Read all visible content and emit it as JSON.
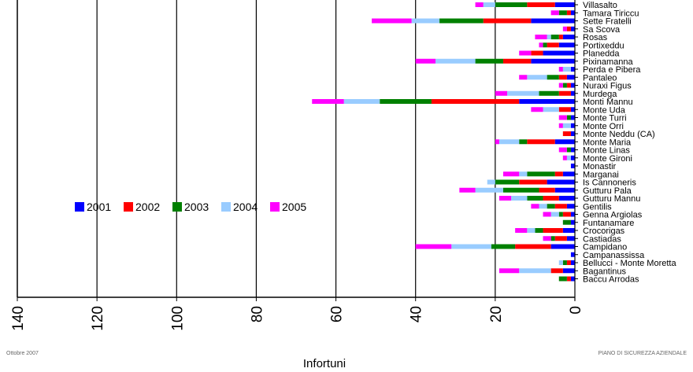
{
  "chart_data": {
    "type": "bar",
    "orientation": "horizontal-stacked",
    "x_direction": "reversed",
    "xlabel": "Infortuni",
    "xlim": [
      0,
      140
    ],
    "xticks": [
      "140",
      "120",
      "100",
      "80",
      "60",
      "40",
      "20",
      "0"
    ],
    "grid": true,
    "legend_position": "left-middle",
    "series": [
      {
        "name": "2001",
        "color": "#0000ff"
      },
      {
        "name": "2002",
        "color": "#ff0000"
      },
      {
        "name": "2003",
        "color": "#008000"
      },
      {
        "name": "2004",
        "color": "#99ccff"
      },
      {
        "name": "2005",
        "color": "#ff00ff"
      }
    ],
    "rows": [
      {
        "label": "Villasalto",
        "values": [
          5,
          7,
          8,
          3,
          2
        ]
      },
      {
        "label": "Tamara Tiriccu",
        "values": [
          1,
          1,
          2,
          0,
          2
        ]
      },
      {
        "label": "Sette Fratelli",
        "values": [
          11,
          12,
          11,
          7,
          10
        ]
      },
      {
        "label": "Sa Scova",
        "values": [
          1,
          1,
          0,
          0,
          1
        ]
      },
      {
        "label": "Rosas",
        "values": [
          3,
          1,
          2,
          1,
          3
        ]
      },
      {
        "label": "Portixeddu",
        "values": [
          4,
          3,
          1,
          0,
          1
        ]
      },
      {
        "label": "Planedda",
        "values": [
          8,
          3,
          0,
          0,
          3
        ]
      },
      {
        "label": "Pixinamanna",
        "values": [
          11,
          7,
          7,
          10,
          5
        ]
      },
      {
        "label": "Perda e Pibera",
        "values": [
          1,
          0,
          0,
          2,
          1
        ]
      },
      {
        "label": "Pantaleo",
        "values": [
          2,
          2,
          3,
          5,
          2
        ]
      },
      {
        "label": "Nuraxi Figus",
        "values": [
          1,
          1,
          1,
          0,
          1
        ]
      },
      {
        "label": "Murdega",
        "values": [
          1,
          3,
          5,
          8,
          3
        ]
      },
      {
        "label": "Monti Mannu",
        "values": [
          14,
          22,
          13,
          9,
          8
        ]
      },
      {
        "label": "Monte Uda",
        "values": [
          1,
          3,
          0,
          4,
          3
        ]
      },
      {
        "label": "Monte Turri",
        "values": [
          1,
          0,
          1,
          0,
          2
        ]
      },
      {
        "label": "Monte Orri",
        "values": [
          1,
          0,
          0,
          2,
          1
        ]
      },
      {
        "label": "Monte Neddu (CA)",
        "values": [
          1,
          2,
          0,
          0,
          0
        ]
      },
      {
        "label": "Monte Maria",
        "values": [
          5,
          7,
          2,
          5,
          1
        ]
      },
      {
        "label": "Monte Linas",
        "values": [
          1,
          0,
          1,
          0,
          2
        ]
      },
      {
        "label": "Monte Gironi",
        "values": [
          1,
          0,
          0,
          1,
          1
        ]
      },
      {
        "label": "Monastir",
        "values": [
          1,
          0,
          0,
          0,
          0
        ]
      },
      {
        "label": "Marganai",
        "values": [
          3,
          2,
          7,
          2,
          4
        ]
      },
      {
        "label": "Is Cannoneris",
        "values": [
          7,
          7,
          6,
          2,
          0
        ]
      },
      {
        "label": "Gutturu Pala",
        "values": [
          5,
          4,
          9,
          7,
          4
        ]
      },
      {
        "label": "Gutturu Mannu",
        "values": [
          4,
          4,
          4,
          4,
          3
        ]
      },
      {
        "label": "Gentilis",
        "values": [
          2,
          3,
          2,
          2,
          2
        ]
      },
      {
        "label": "Genna Argiolas",
        "values": [
          1,
          2,
          1,
          2,
          2
        ]
      },
      {
        "label": "Funtanamare",
        "values": [
          1,
          0,
          2,
          0,
          0
        ]
      },
      {
        "label": "Crocorigas",
        "values": [
          3,
          5,
          2,
          2,
          3
        ]
      },
      {
        "label": "Castiadas",
        "values": [
          2,
          3,
          1,
          0,
          2
        ]
      },
      {
        "label": "Campidano",
        "values": [
          6,
          9,
          6,
          10,
          9
        ]
      },
      {
        "label": "Campanassissa",
        "values": [
          1,
          0,
          0,
          0,
          0
        ]
      },
      {
        "label": "Bellucci - Monte Moretta",
        "values": [
          1,
          1,
          1,
          1,
          0
        ]
      },
      {
        "label": "Bagantinus",
        "values": [
          3,
          3,
          0,
          8,
          5
        ]
      },
      {
        "label": "Baccu Arrodas",
        "values": [
          1,
          1,
          2,
          0,
          0
        ]
      }
    ]
  },
  "footer": {
    "left": "Ottobre 2007",
    "right": "PIANO DI SICUREZZA AZIENDALE"
  }
}
